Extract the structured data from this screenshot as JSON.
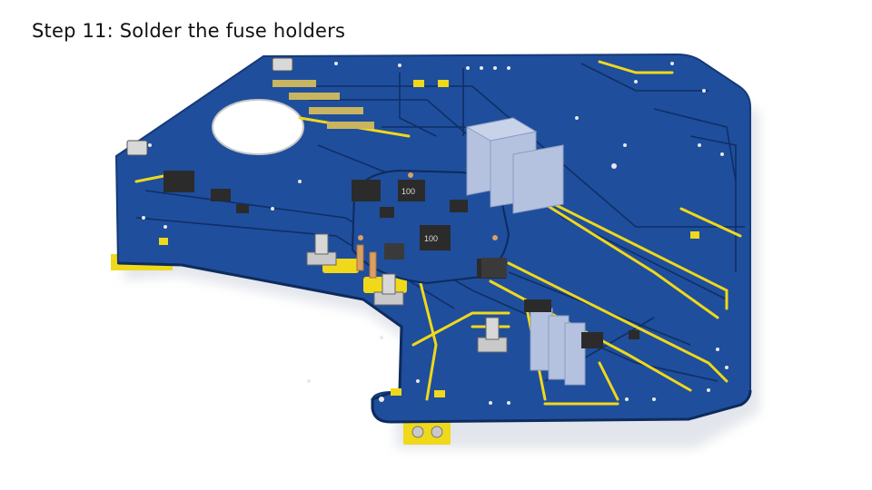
{
  "slide": {
    "title": "Step 11: Solder the fuse holders"
  },
  "board": {
    "colors": {
      "pcb": "#1f4e9c",
      "pcb_dark": "#173f82",
      "trace": "#0f2f66",
      "copper": "#f0d81a",
      "silk": "#e8e8e8",
      "heatsink": "#b4c2e0",
      "component": "#2b2b2b",
      "metal": "#c9c9c9"
    },
    "chip_labels": [
      "100",
      "100"
    ]
  }
}
